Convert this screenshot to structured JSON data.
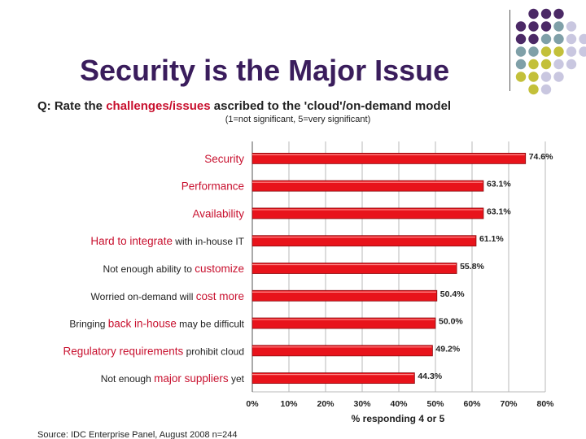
{
  "slide": {
    "title": "Security is the Major Issue",
    "dot_colors": {
      "purple": "#4b2966",
      "teal": "#7fa0a8",
      "olive": "#c3c03a",
      "lilac": "#c9c7e0"
    }
  },
  "chart_data": {
    "type": "bar",
    "orientation": "horizontal",
    "title_parts": [
      {
        "text": "Q:  Rate the ",
        "emphasis": false
      },
      {
        "text": "challenges/issues",
        "emphasis": true
      },
      {
        "text": " ascribed to the 'cloud'/on-demand model",
        "emphasis": false
      }
    ],
    "subtitle": "(1=not significant, 5=very significant)",
    "categories": [
      [
        {
          "text": "Security",
          "emphasis": true
        }
      ],
      [
        {
          "text": "Performance",
          "emphasis": true
        }
      ],
      [
        {
          "text": "Availability",
          "emphasis": true
        }
      ],
      [
        {
          "text": "Hard to integrate",
          "emphasis": true
        },
        {
          "text": " with in-house IT",
          "emphasis": false
        }
      ],
      [
        {
          "text": "Not enough ability to ",
          "emphasis": false
        },
        {
          "text": "customize",
          "emphasis": true
        }
      ],
      [
        {
          "text": "Worried on-demand will ",
          "emphasis": false
        },
        {
          "text": "cost more",
          "emphasis": true
        }
      ],
      [
        {
          "text": "Bringing ",
          "emphasis": false
        },
        {
          "text": "back in-house",
          "emphasis": true
        },
        {
          "text": " may be difficult",
          "emphasis": false
        }
      ],
      [
        {
          "text": "Regulatory requirements",
          "emphasis": true
        },
        {
          "text": " prohibit cloud",
          "emphasis": false
        }
      ],
      [
        {
          "text": "Not enough ",
          "emphasis": false
        },
        {
          "text": "major suppliers",
          "emphasis": true
        },
        {
          "text": " yet",
          "emphasis": false
        }
      ]
    ],
    "values": [
      74.6,
      63.1,
      63.1,
      61.1,
      55.8,
      50.4,
      50.0,
      49.2,
      44.3
    ],
    "value_labels": [
      "74.6%",
      "63.1%",
      "63.1%",
      "61.1%",
      "55.8%",
      "50.4%",
      "50.0%",
      "49.2%",
      "44.3%"
    ],
    "x_ticks": [
      0,
      10,
      20,
      30,
      40,
      50,
      60,
      70,
      80
    ],
    "x_tick_labels": [
      "0%",
      "10%",
      "20%",
      "30%",
      "40%",
      "50%",
      "60%",
      "70%",
      "80%"
    ],
    "xlim": [
      0,
      80
    ],
    "xlabel": "% responding 4 or 5",
    "source": "Source: IDC Enterprise Panel, August 2008  n=244",
    "colors": {
      "bar": "#e8131b",
      "bar_edge": "#8a0a0e",
      "emphasis_text": "#c8102e",
      "text": "#222222",
      "grid": "#b8b8b8"
    },
    "grid": true
  }
}
